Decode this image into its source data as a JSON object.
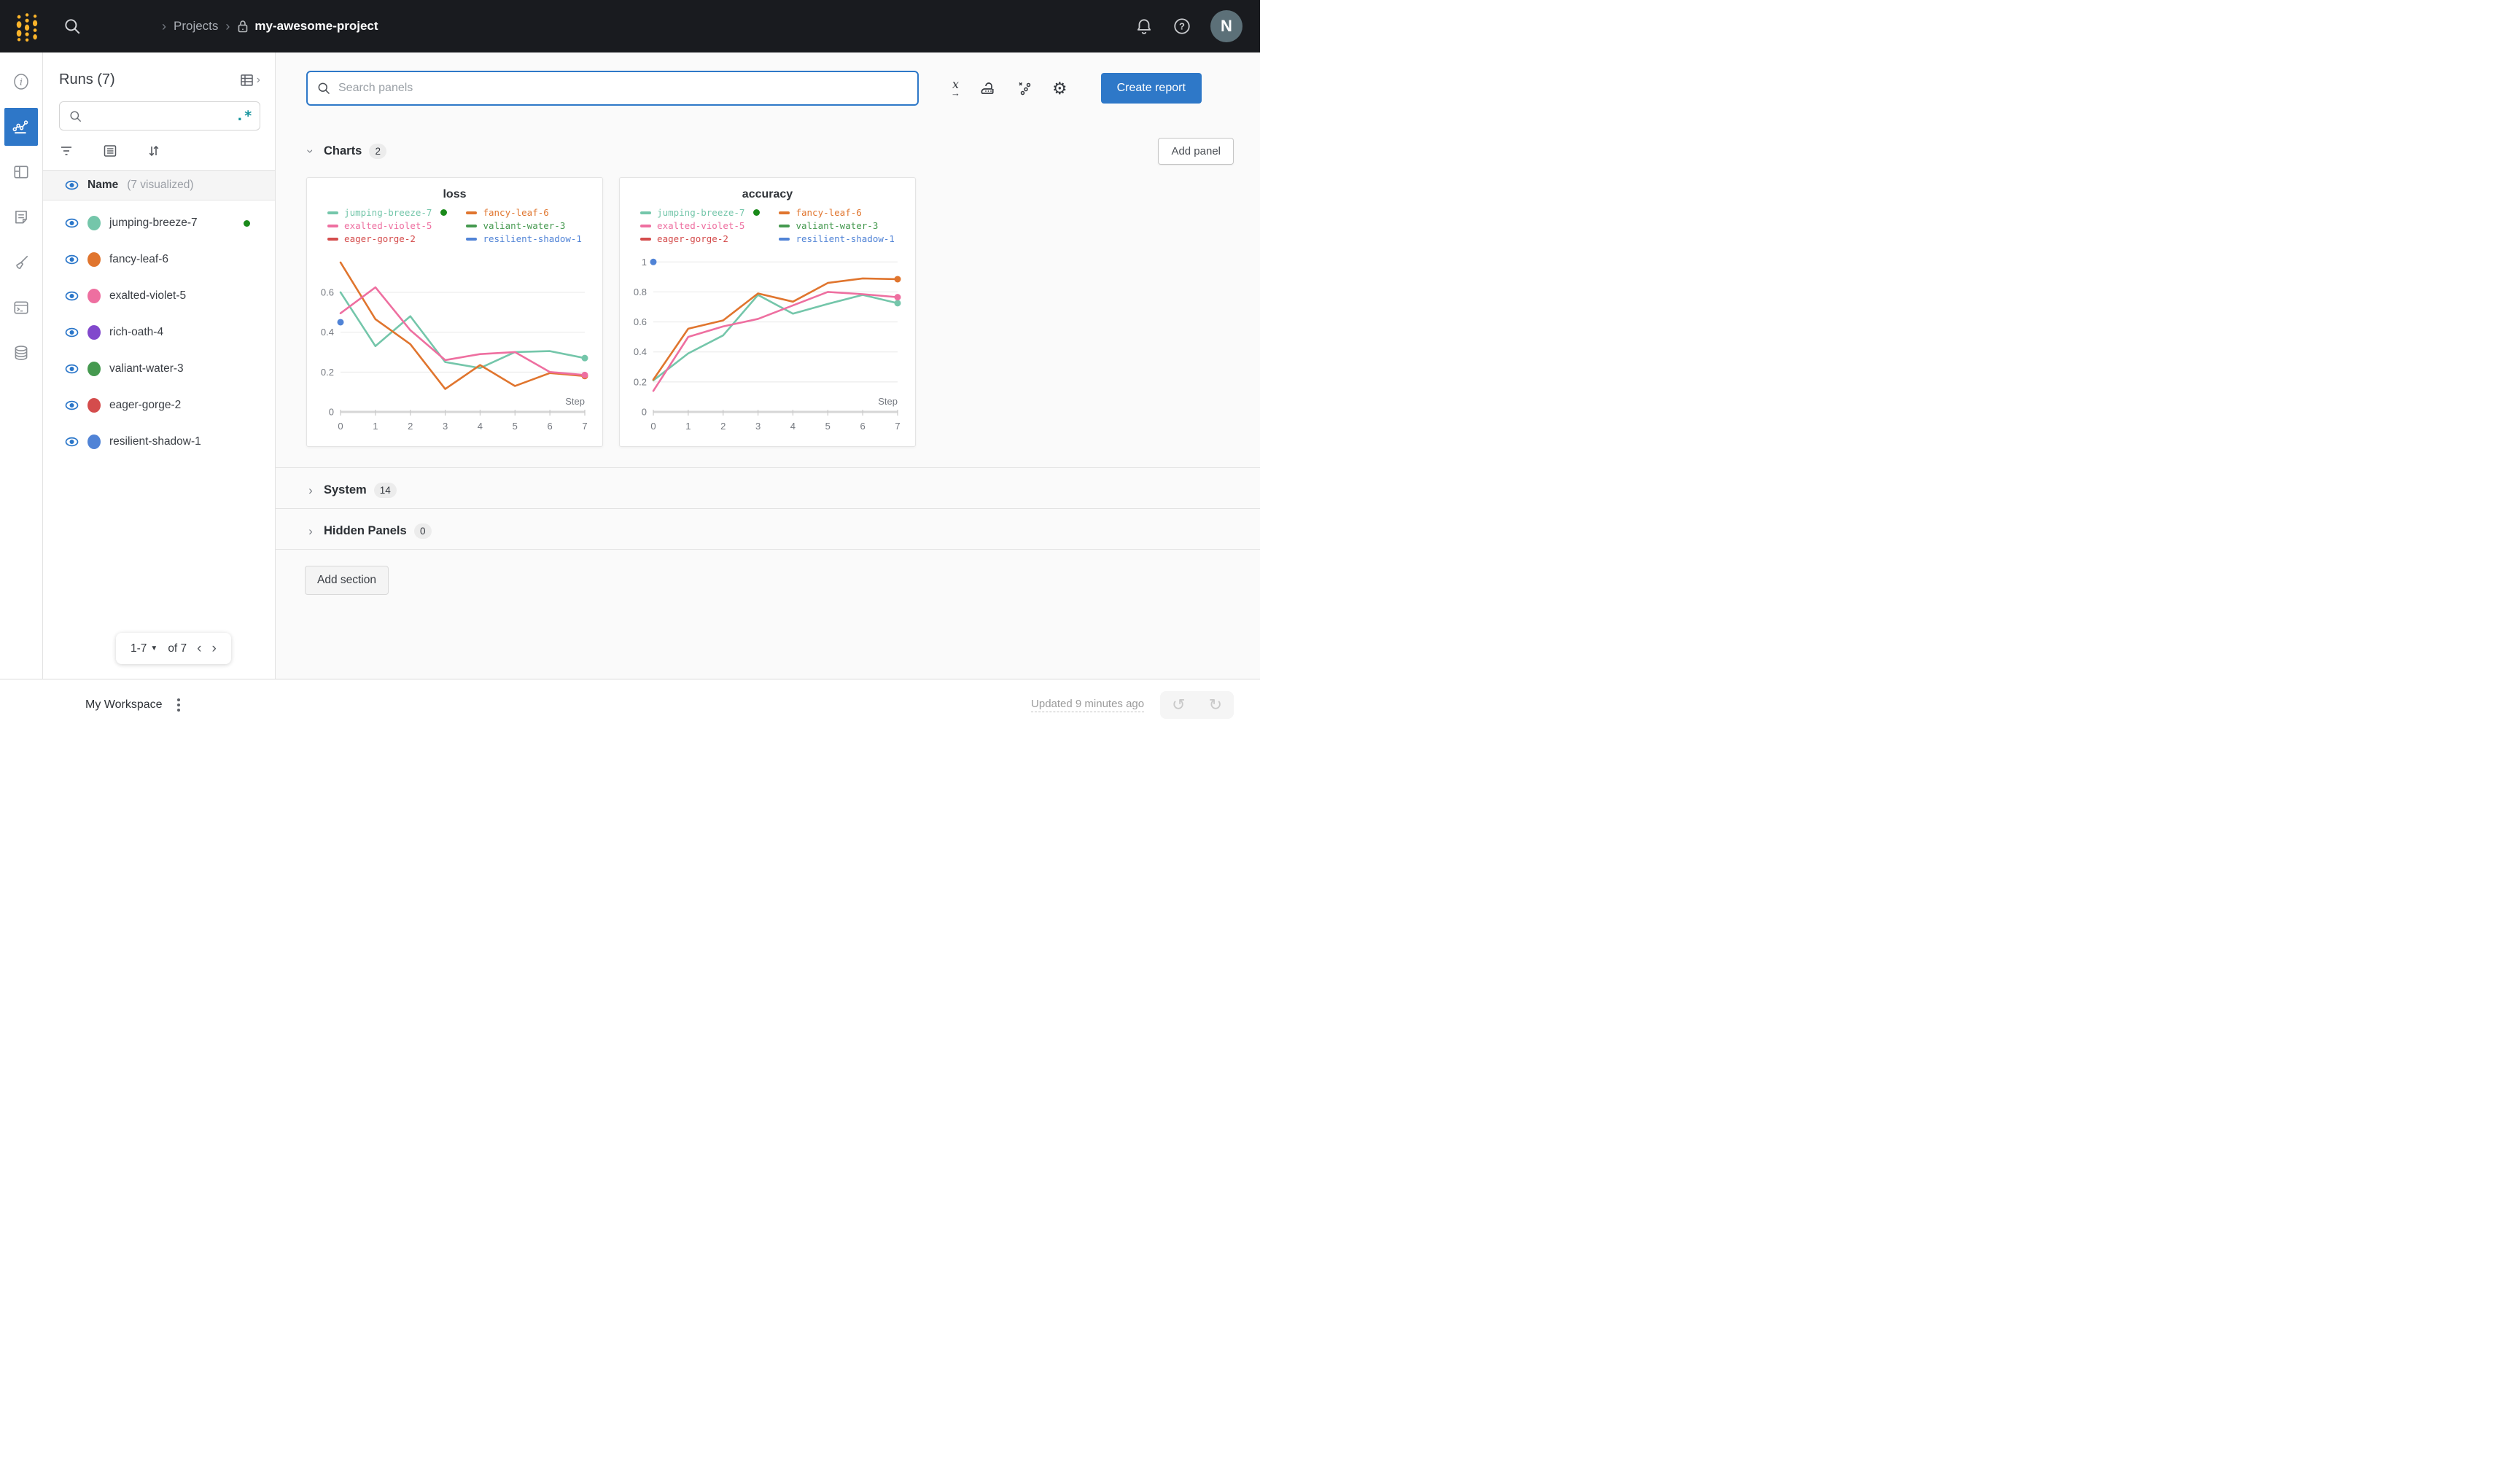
{
  "topbar": {
    "breadcrumb": {
      "projects": "Projects",
      "project": "my-awesome-project"
    },
    "avatar": "N"
  },
  "rail": {
    "items": [
      "info",
      "workspace-charts",
      "panels",
      "notes",
      "sweeps-broom",
      "terminal",
      "artifacts-database"
    ],
    "selected": "workspace-charts",
    "selected_color": "#2e77c8"
  },
  "sidebar": {
    "title": "Runs (7)",
    "search_value": "",
    "regex_label": ".*",
    "visualized_header": {
      "name": "Name",
      "note": "(7 visualized)"
    },
    "runs": [
      {
        "name": "jumping-breeze-7",
        "color": "#74c6aa",
        "running": true
      },
      {
        "name": "fancy-leaf-6",
        "color": "#e0752e",
        "running": false
      },
      {
        "name": "exalted-violet-5",
        "color": "#ee6fa0",
        "running": false
      },
      {
        "name": "rich-oath-4",
        "color": "#8148cc",
        "running": false
      },
      {
        "name": "valiant-water-3",
        "color": "#45994f",
        "running": false
      },
      {
        "name": "eager-gorge-2",
        "color": "#d44c4c",
        "running": false
      },
      {
        "name": "resilient-shadow-1",
        "color": "#5083d6",
        "running": false
      }
    ],
    "running_indicator_color": "#1a8a1a",
    "pagination": {
      "range": "1-7",
      "of": "of 7"
    }
  },
  "main": {
    "search": {
      "placeholder": "Search panels"
    },
    "toolbar": {
      "create_report": "Create report"
    },
    "sections": {
      "charts": {
        "label": "Charts",
        "count": "2"
      },
      "system": {
        "label": "System",
        "count": "14"
      },
      "hidden": {
        "label": "Hidden Panels",
        "count": "0"
      }
    },
    "add_panel": "Add panel",
    "add_section": "Add section"
  },
  "footer": {
    "workspace": "My Workspace",
    "updated": "Updated 9 minutes ago"
  },
  "chart_data": [
    {
      "type": "line",
      "title": "loss",
      "xlabel": "Step",
      "x": [
        0,
        1,
        2,
        3,
        4,
        5,
        6,
        7
      ],
      "ylim": [
        0,
        0.79
      ],
      "yticks": [
        0,
        0.2,
        0.4,
        0.6
      ],
      "grid": true,
      "legend_position": "top",
      "series": [
        {
          "name": "jumping-breeze-7",
          "color": "#74c6aa",
          "running": true,
          "end_dot": true,
          "values": [
            0.6,
            0.33,
            0.48,
            0.25,
            0.22,
            0.3,
            0.305,
            0.27
          ]
        },
        {
          "name": "fancy-leaf-6",
          "color": "#e0752e",
          "end_dot": true,
          "values": [
            0.75,
            0.465,
            0.34,
            0.115,
            0.235,
            0.13,
            0.195,
            0.18
          ]
        },
        {
          "name": "exalted-violet-5",
          "color": "#ee6fa0",
          "end_dot": true,
          "values": [
            0.495,
            0.625,
            0.41,
            0.26,
            0.29,
            0.3,
            0.2,
            0.185
          ]
        },
        {
          "name": "valiant-water-3",
          "color": "#45994f",
          "values": null
        },
        {
          "name": "eager-gorge-2",
          "color": "#d44c4c",
          "values": null
        },
        {
          "name": "resilient-shadow-1",
          "color": "#5083d6",
          "points": [
            [
              0,
              0.45
            ]
          ]
        }
      ]
    },
    {
      "type": "line",
      "title": "accuracy",
      "xlabel": "Step",
      "x": [
        0,
        1,
        2,
        3,
        4,
        5,
        6,
        7
      ],
      "ylim": [
        0,
        1.05
      ],
      "yticks": [
        0,
        0.2,
        0.4,
        0.6,
        0.8,
        1
      ],
      "grid": true,
      "legend_position": "top",
      "series": [
        {
          "name": "jumping-breeze-7",
          "color": "#74c6aa",
          "running": true,
          "end_dot": true,
          "values": [
            0.21,
            0.39,
            0.51,
            0.78,
            0.655,
            0.72,
            0.78,
            0.725
          ]
        },
        {
          "name": "fancy-leaf-6",
          "color": "#e0752e",
          "end_dot": true,
          "values": [
            0.215,
            0.555,
            0.61,
            0.79,
            0.735,
            0.86,
            0.89,
            0.885
          ]
        },
        {
          "name": "exalted-violet-5",
          "color": "#ee6fa0",
          "end_dot": true,
          "values": [
            0.14,
            0.5,
            0.57,
            0.62,
            0.71,
            0.8,
            0.785,
            0.765
          ]
        },
        {
          "name": "valiant-water-3",
          "color": "#45994f",
          "values": null
        },
        {
          "name": "eager-gorge-2",
          "color": "#d44c4c",
          "values": null
        },
        {
          "name": "resilient-shadow-1",
          "color": "#5083d6",
          "points": [
            [
              0,
              1.0
            ]
          ]
        }
      ]
    }
  ]
}
